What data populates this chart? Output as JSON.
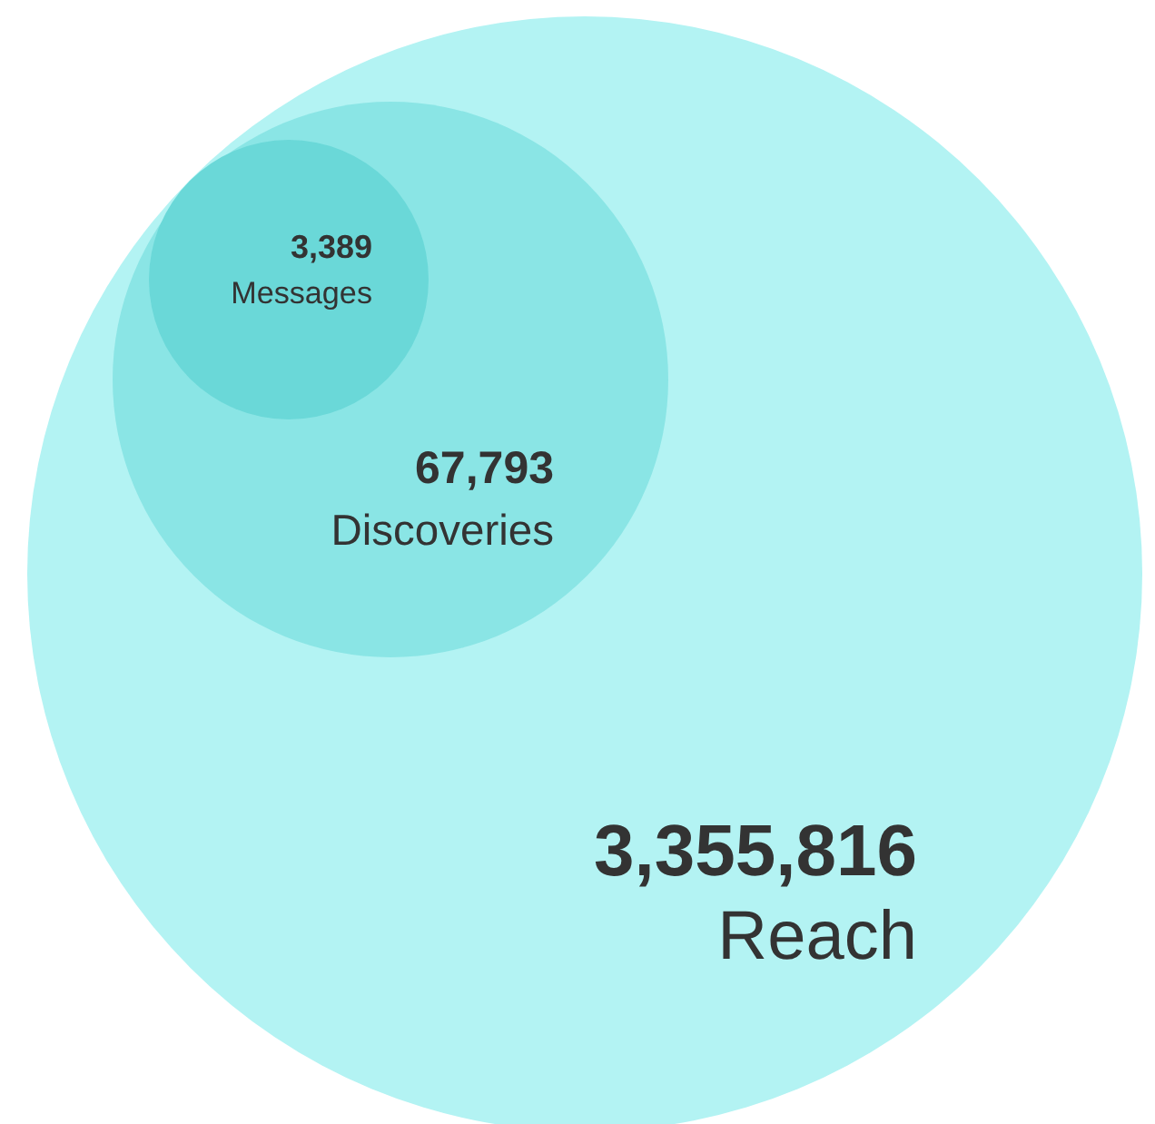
{
  "chart_data": {
    "type": "other",
    "categories": [
      "Reach",
      "Discoveries",
      "Messages"
    ],
    "values": [
      3355816,
      67793,
      3389
    ],
    "colors": [
      "#b3f3f3",
      "#8ae5e5",
      "#6ad8d8"
    ],
    "value_labels": [
      "3,355,816",
      "67,793",
      "3,389"
    ]
  }
}
